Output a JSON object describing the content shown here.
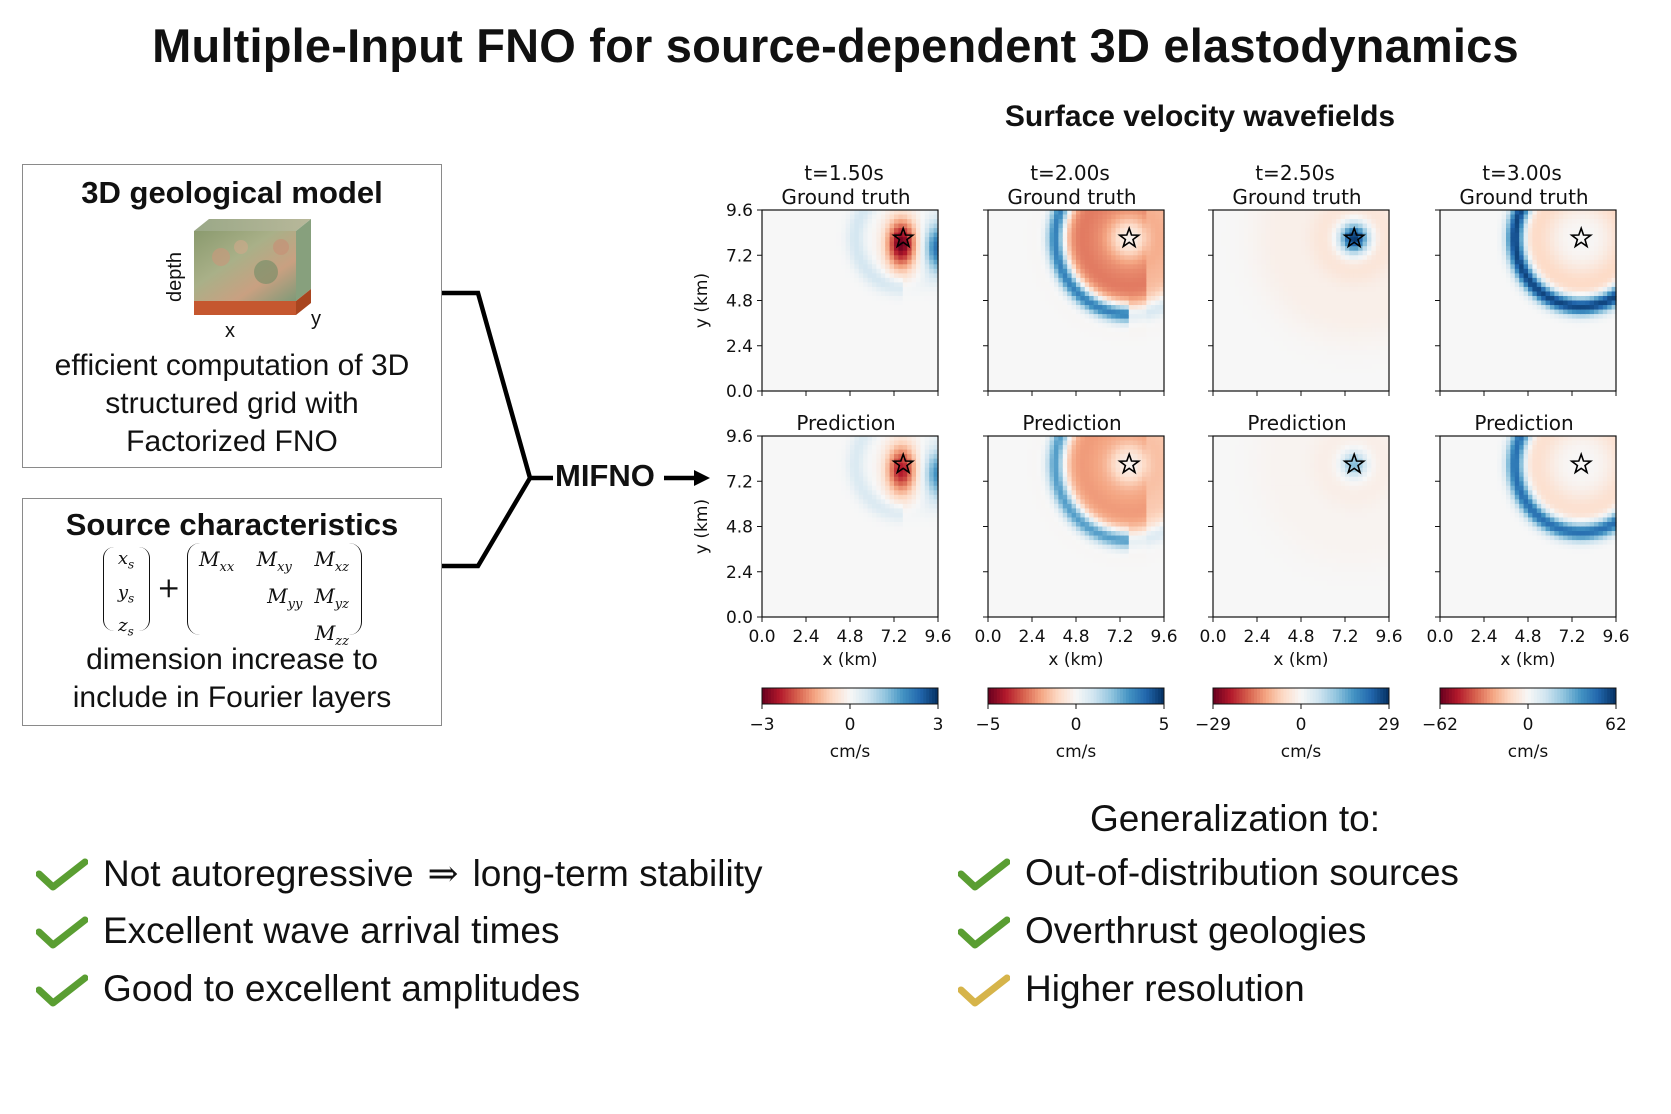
{
  "title": "Multiple-Input FNO for source-dependent 3D elastodynamics",
  "geo_box": {
    "title": "3D geological model",
    "cube_labels": {
      "depth": "depth",
      "x": "x",
      "y": "y"
    },
    "text_lines": [
      "efficient computation of 3D",
      "structured grid with",
      "Factorized FNO"
    ]
  },
  "source_box": {
    "title": "Source characteristics",
    "vector": [
      "x",
      "y",
      "z"
    ],
    "vector_sub": "s",
    "matrix_row1": [
      "M",
      "M",
      "M"
    ],
    "matrix_row1_sub": [
      "xx",
      "xy",
      "xz"
    ],
    "matrix_row2": [
      "M",
      "M"
    ],
    "matrix_row2_sub": [
      "yy",
      "yz"
    ],
    "matrix_row3": [
      "M"
    ],
    "matrix_row3_sub": [
      "zz"
    ],
    "plus": "+",
    "text_lines": [
      "dimension increase to",
      "include in Fourier layers"
    ]
  },
  "model_label": "MIFNO",
  "wavefields_title": "Surface velocity wavefields",
  "chart_data": {
    "type": "heatmap",
    "grid_rows": [
      "Ground truth",
      "Prediction"
    ],
    "times": [
      "t=1.50s",
      "t=2.00s",
      "t=2.50s",
      "t=3.00s"
    ],
    "xlabel": "x (km)",
    "ylabel": "y (km)",
    "xticks": [
      "0.0",
      "2.4",
      "4.8",
      "7.2",
      "9.6"
    ],
    "yticks": [
      "0.0",
      "2.4",
      "4.8",
      "7.2",
      "9.6"
    ],
    "xlim": [
      0,
      9.6
    ],
    "ylim": [
      0,
      9.6
    ],
    "source_location_km": [
      7.7,
      8.1
    ],
    "colorbar_unit": "cm/s",
    "colorbar_ranges": [
      {
        "min": "−3",
        "mid": "0",
        "max": "3"
      },
      {
        "min": "−5",
        "mid": "0",
        "max": "5"
      },
      {
        "min": "−29",
        "mid": "0",
        "max": "29"
      },
      {
        "min": "−62",
        "mid": "0",
        "max": "62"
      }
    ],
    "colormap": [
      "#67001f",
      "#b2182b",
      "#d6604d",
      "#f4a582",
      "#fddbc7",
      "#f7f7f7",
      "#d1e5f0",
      "#92c5de",
      "#4393c3",
      "#2166ac",
      "#053061"
    ]
  },
  "bullets_left": [
    {
      "text_a": "Not autoregressive",
      "symbol": "⇒",
      "text_b": "long-term stability",
      "check_color": "#5a9e32"
    },
    {
      "text_a": "Excellent wave arrival times",
      "check_color": "#5a9e32"
    },
    {
      "text_a": "Good to excellent amplitudes",
      "check_color": "#5a9e32"
    }
  ],
  "generalization_title": "Generalization to:",
  "bullets_right": [
    {
      "text_a": "Out-of-distribution sources",
      "check_color": "#5a9e32"
    },
    {
      "text_a": "Overthrust geologies",
      "check_color": "#5a9e32"
    },
    {
      "text_a": "Higher resolution",
      "check_color": "#d6b44a"
    }
  ]
}
